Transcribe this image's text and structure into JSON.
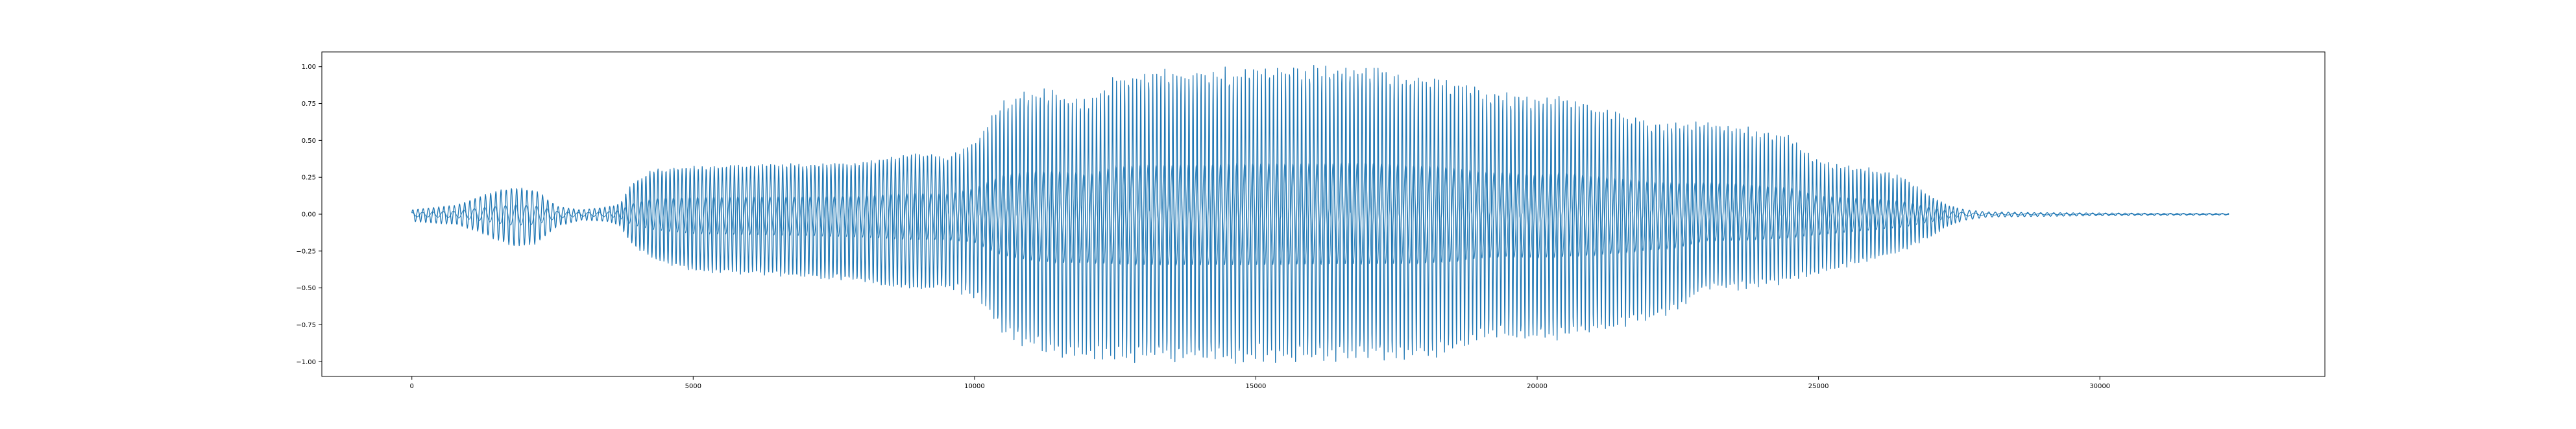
{
  "colors": {
    "line": "#1f77b4",
    "axes": "#000000",
    "background": "#ffffff"
  },
  "chart_data": {
    "type": "line",
    "title": "",
    "xlabel": "",
    "ylabel": "",
    "xlim": [
      -1600,
      34000
    ],
    "ylim": [
      -1.1,
      1.1
    ],
    "grid": false,
    "legend": "none",
    "xticks": [
      0,
      5000,
      10000,
      15000,
      20000,
      25000,
      30000
    ],
    "xtick_labels": [
      "0",
      "5000",
      "10000",
      "15000",
      "20000",
      "25000",
      "30000"
    ],
    "yticks": [
      1.0,
      0.75,
      0.5,
      0.25,
      0.0,
      -0.25,
      -0.5,
      -0.75,
      -1.0
    ],
    "ytick_labels": [
      "1.00",
      "0.75",
      "0.50",
      "0.25",
      "0.00",
      "−0.25",
      "−0.50",
      "−0.75",
      "−1.00"
    ],
    "x_range": [
      0,
      32300
    ],
    "envelope": {
      "x": [
        0,
        800,
        1200,
        1800,
        2200,
        2600,
        3000,
        3500,
        3700,
        3900,
        4300,
        5000,
        6000,
        7000,
        8000,
        8500,
        9000,
        9500,
        10000,
        10500,
        11000,
        11500,
        12000,
        12500,
        13000,
        14000,
        15000,
        16000,
        17000,
        17500,
        18000,
        18500,
        19000,
        19500,
        20000,
        20500,
        21000,
        21500,
        22000,
        22500,
        23000,
        23500,
        24000,
        24500,
        25000,
        25500,
        26000,
        26500,
        27000,
        27300,
        27600,
        28000,
        29000,
        30000,
        31000,
        32300
      ],
      "upper": [
        0.03,
        0.06,
        0.12,
        0.18,
        0.16,
        0.05,
        0.03,
        0.05,
        0.07,
        0.2,
        0.3,
        0.32,
        0.33,
        0.33,
        0.34,
        0.38,
        0.4,
        0.38,
        0.5,
        0.75,
        0.82,
        0.82,
        0.75,
        0.92,
        0.95,
        0.95,
        0.98,
        0.98,
        1.0,
        0.95,
        0.93,
        0.9,
        0.82,
        0.8,
        0.75,
        0.8,
        0.72,
        0.68,
        0.62,
        0.6,
        0.62,
        0.6,
        0.55,
        0.52,
        0.35,
        0.32,
        0.3,
        0.25,
        0.12,
        0.06,
        0.03,
        0.015,
        0.01,
        0.008,
        0.006,
        0.005
      ],
      "lower": [
        -0.05,
        -0.07,
        -0.12,
        -0.22,
        -0.2,
        -0.08,
        -0.04,
        -0.05,
        -0.08,
        -0.2,
        -0.3,
        -0.38,
        -0.4,
        -0.42,
        -0.45,
        -0.48,
        -0.5,
        -0.5,
        -0.55,
        -0.8,
        -0.9,
        -0.95,
        -0.95,
        -0.97,
        -0.98,
        -0.98,
        -0.98,
        -0.97,
        -0.96,
        -0.96,
        -0.95,
        -0.92,
        -0.85,
        -0.82,
        -0.85,
        -0.82,
        -0.8,
        -0.75,
        -0.7,
        -0.65,
        -0.5,
        -0.5,
        -0.48,
        -0.45,
        -0.4,
        -0.35,
        -0.3,
        -0.25,
        -0.15,
        -0.08,
        -0.04,
        -0.02,
        -0.015,
        -0.01,
        -0.008,
        -0.006
      ]
    }
  }
}
